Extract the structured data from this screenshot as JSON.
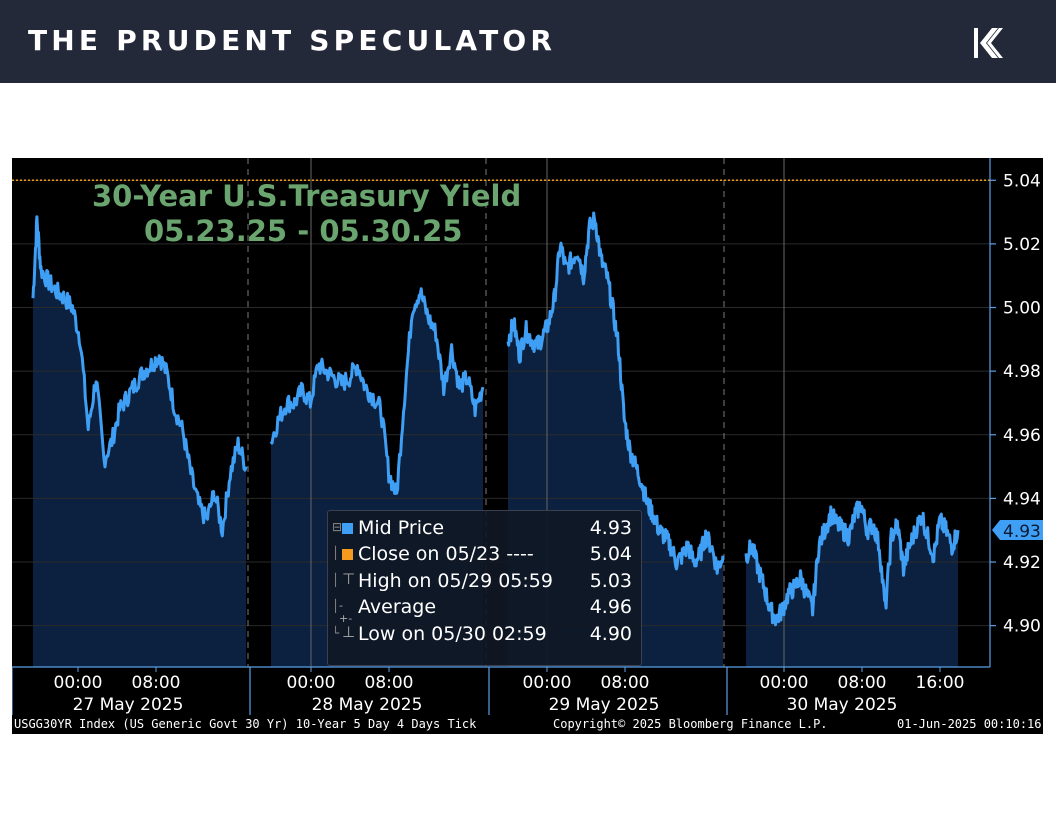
{
  "header": {
    "brand": "THE PRUDENT SPECULATOR",
    "logo_icon": "brand-k-logo-icon",
    "background": "#24293a"
  },
  "chart_data": {
    "type": "area",
    "title_line1": "30-Year U.S.Treasury Yield",
    "title_line2": "05.23.25 - 05.30.25",
    "ylim": [
      4.887,
      5.047
    ],
    "yticks": [
      "5.04",
      "5.02",
      "5.00",
      "4.98",
      "4.96",
      "4.94",
      "4.92",
      "4.90"
    ],
    "current_value_tag": "4.93",
    "close_line_value": 5.04,
    "x_time_labels": [
      "00:00",
      "08:00",
      "00:00",
      "08:00",
      "00:00",
      "08:00",
      "00:00",
      "08:00",
      "16:00"
    ],
    "x_day_labels": [
      "27 May 2025",
      "28 May 2025",
      "29 May 2025",
      "30 May 2025"
    ],
    "colors": {
      "line": "#3f9ff5",
      "fill": "#0c213f",
      "close_line": "#f39a1f",
      "title": "#6aa56f",
      "background": "#000000"
    },
    "series": [
      {
        "name": "Mid Price",
        "sessions": [
          {
            "day": "27 May 2025",
            "x": [
              20,
              20.5,
              21,
              22,
              23,
              24,
              25,
              26,
              27,
              28,
              29,
              30,
              31,
              32,
              33,
              34,
              35,
              36,
              37,
              38,
              39,
              40,
              41,
              42,
              43,
              44,
              45,
              46,
              47
            ],
            "y": [
              5.003,
              5.028,
              5.012,
              5.008,
              5.005,
              5.003,
              5.0,
              4.99,
              4.962,
              4.978,
              4.952,
              4.958,
              4.968,
              4.972,
              4.976,
              4.98,
              4.982,
              4.985,
              4.979,
              4.968,
              4.961,
              4.948,
              4.938,
              4.933,
              4.942,
              4.93,
              4.948,
              4.957,
              4.95
            ]
          },
          {
            "day": "28 May 2025",
            "x": [
              44,
              45,
              46,
              47,
              48,
              49,
              50,
              51,
              52,
              53,
              54,
              55,
              56,
              57,
              58,
              59,
              60,
              61,
              62,
              63,
              64,
              65,
              66,
              67,
              68,
              69,
              70,
              71
            ],
            "y": [
              4.958,
              4.965,
              4.97,
              4.97,
              4.974,
              4.97,
              4.982,
              4.98,
              4.978,
              4.976,
              4.978,
              4.982,
              4.975,
              4.972,
              4.968,
              4.948,
              4.941,
              4.972,
              5.0,
              5.005,
              4.997,
              4.992,
              4.975,
              4.987,
              4.975,
              4.978,
              4.968,
              4.975
            ]
          },
          {
            "day": "29 May 2025",
            "x": [
              68,
              69,
              70,
              71,
              72,
              73,
              74,
              75,
              76,
              77,
              78,
              79,
              80,
              81,
              82,
              83,
              84,
              85,
              86,
              87,
              88,
              89,
              90,
              91,
              92,
              93,
              94,
              95,
              96,
              97,
              98,
              99,
              100,
              101,
              102,
              103,
              104,
              105
            ],
            "y": [
              4.99,
              4.995,
              4.985,
              4.993,
              4.99,
              4.988,
              4.991,
              4.995,
              5.003,
              5.02,
              5.012,
              5.015,
              5.018,
              5.01,
              5.025,
              5.028,
              5.015,
              5.01,
              5.0,
              4.988,
              4.965,
              4.955,
              4.95,
              4.945,
              4.938,
              4.935,
              4.93,
              4.928,
              4.925,
              4.92,
              4.922,
              4.925,
              4.92,
              4.922,
              4.928,
              4.925,
              4.918,
              4.922
            ]
          },
          {
            "day": "30 May 2025",
            "x": [
              101,
              102,
              103,
              104,
              105,
              106,
              107,
              108,
              109,
              110,
              111,
              112,
              113,
              114,
              115,
              116,
              117,
              118,
              119,
              120,
              121,
              122,
              123,
              124,
              125,
              126,
              127,
              128,
              129,
              130,
              131,
              132,
              133,
              134,
              135,
              136
            ],
            "y": [
              4.922,
              4.925,
              4.918,
              4.912,
              4.905,
              4.902,
              4.905,
              4.91,
              4.912,
              4.915,
              4.91,
              4.905,
              4.925,
              4.93,
              4.935,
              4.932,
              4.93,
              4.928,
              4.935,
              4.938,
              4.93,
              4.932,
              4.925,
              4.905,
              4.928,
              4.932,
              4.918,
              4.925,
              4.93,
              4.935,
              4.928,
              4.922,
              4.933,
              4.93,
              4.925,
              4.93
            ]
          }
        ]
      },
      {
        "name": "Close on 05/23",
        "value": 5.04
      }
    ],
    "legend": [
      {
        "label": "Mid Price",
        "value": "4.93",
        "color": "#3f9ff5",
        "marker": "square",
        "tree": "⊟"
      },
      {
        "label": "Close on 05/23 ----",
        "value": "5.04",
        "color": "#f39a1f",
        "marker": "square",
        "tree": "│"
      },
      {
        "label": "High on 05/29 05:59",
        "value": "5.03",
        "color": "#aaaaaa",
        "marker": "⊤",
        "tree": "│"
      },
      {
        "label": "Average",
        "value": "4.96",
        "color": "#aaaaaa",
        "marker": "-+-",
        "tree": "│"
      },
      {
        "label": "Low on 05/30 02:59",
        "value": "4.90",
        "color": "#aaaaaa",
        "marker": "⊥",
        "tree": "└"
      }
    ],
    "footer_left": "USGG30YR Index (US Generic Govt 30 Yr) 10-Year 5 Day 4 Days  Tick",
    "footer_center": "Copyright© 2025 Bloomberg Finance L.P.",
    "footer_right": "01-Jun-2025 00:10:16"
  }
}
